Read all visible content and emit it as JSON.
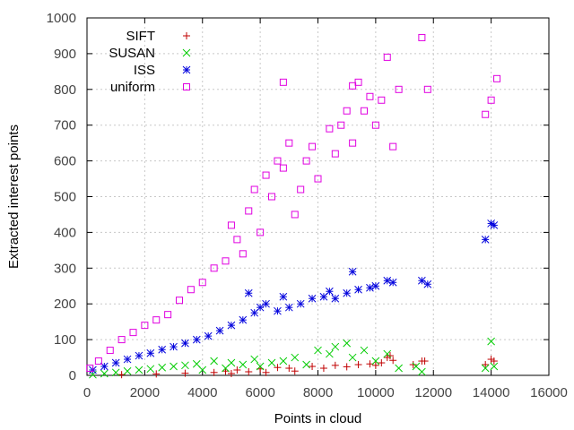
{
  "chart_data": {
    "type": "scatter",
    "title": "",
    "xlabel": "Points in cloud",
    "ylabel": "Extracted interest points",
    "xlim": [
      0,
      16000
    ],
    "ylim": [
      0,
      1000
    ],
    "xticks": [
      0,
      2000,
      4000,
      6000,
      8000,
      10000,
      12000,
      14000,
      16000
    ],
    "yticks": [
      0,
      100,
      200,
      300,
      400,
      500,
      600,
      700,
      800,
      900,
      1000
    ],
    "grid": true,
    "legend_position": "top-left",
    "series": [
      {
        "name": "SIFT",
        "marker": "plus",
        "color": "#c00000",
        "points": [
          [
            1200,
            2
          ],
          [
            2400,
            4
          ],
          [
            3400,
            6
          ],
          [
            4400,
            8
          ],
          [
            4800,
            12
          ],
          [
            5200,
            15
          ],
          [
            5600,
            10
          ],
          [
            6000,
            18
          ],
          [
            6600,
            22
          ],
          [
            7000,
            20
          ],
          [
            7200,
            12
          ],
          [
            7800,
            25
          ],
          [
            8200,
            20
          ],
          [
            8600,
            28
          ],
          [
            9000,
            24
          ],
          [
            9400,
            30
          ],
          [
            9800,
            32
          ],
          [
            10000,
            28
          ],
          [
            10200,
            35
          ],
          [
            10400,
            50
          ],
          [
            10500,
            55
          ],
          [
            10600,
            42
          ],
          [
            11300,
            30
          ],
          [
            11600,
            40
          ],
          [
            11700,
            40
          ],
          [
            13800,
            30
          ],
          [
            14000,
            45
          ],
          [
            14100,
            40
          ],
          [
            6200,
            8
          ],
          [
            5000,
            5
          ]
        ]
      },
      {
        "name": "SUSAN",
        "marker": "cross",
        "color": "#00cc00",
        "points": [
          [
            200,
            2
          ],
          [
            600,
            5
          ],
          [
            1000,
            8
          ],
          [
            1400,
            12
          ],
          [
            1800,
            15
          ],
          [
            2200,
            18
          ],
          [
            2600,
            22
          ],
          [
            3000,
            25
          ],
          [
            3400,
            28
          ],
          [
            3800,
            32
          ],
          [
            4000,
            15
          ],
          [
            4400,
            40
          ],
          [
            4800,
            20
          ],
          [
            5000,
            35
          ],
          [
            5400,
            30
          ],
          [
            5800,
            45
          ],
          [
            6000,
            25
          ],
          [
            6400,
            35
          ],
          [
            6800,
            40
          ],
          [
            7200,
            50
          ],
          [
            7600,
            30
          ],
          [
            8000,
            70
          ],
          [
            8400,
            60
          ],
          [
            8600,
            80
          ],
          [
            9000,
            90
          ],
          [
            9200,
            50
          ],
          [
            9600,
            70
          ],
          [
            10000,
            40
          ],
          [
            10400,
            60
          ],
          [
            10800,
            20
          ],
          [
            11400,
            25
          ],
          [
            11600,
            10
          ],
          [
            14000,
            95
          ],
          [
            14100,
            25
          ],
          [
            13800,
            20
          ]
        ]
      },
      {
        "name": "ISS",
        "marker": "star",
        "color": "#0000dd",
        "points": [
          [
            200,
            15
          ],
          [
            600,
            25
          ],
          [
            1000,
            35
          ],
          [
            1400,
            45
          ],
          [
            1800,
            55
          ],
          [
            2200,
            62
          ],
          [
            2600,
            72
          ],
          [
            3000,
            80
          ],
          [
            3400,
            90
          ],
          [
            3800,
            100
          ],
          [
            4200,
            110
          ],
          [
            4600,
            125
          ],
          [
            5000,
            140
          ],
          [
            5400,
            155
          ],
          [
            5800,
            175
          ],
          [
            6000,
            190
          ],
          [
            6200,
            200
          ],
          [
            6600,
            180
          ],
          [
            7000,
            190
          ],
          [
            7400,
            200
          ],
          [
            7800,
            215
          ],
          [
            8200,
            220
          ],
          [
            8600,
            215
          ],
          [
            9000,
            230
          ],
          [
            9200,
            290
          ],
          [
            9400,
            240
          ],
          [
            9800,
            245
          ],
          [
            10000,
            250
          ],
          [
            10400,
            265
          ],
          [
            10600,
            260
          ],
          [
            11600,
            265
          ],
          [
            11800,
            255
          ],
          [
            13800,
            380
          ],
          [
            14000,
            425
          ],
          [
            14100,
            420
          ],
          [
            5600,
            230
          ],
          [
            6800,
            220
          ],
          [
            8400,
            235
          ]
        ]
      },
      {
        "name": "uniform",
        "marker": "square",
        "color": "#e000e0",
        "points": [
          [
            100,
            20
          ],
          [
            400,
            40
          ],
          [
            800,
            70
          ],
          [
            1200,
            100
          ],
          [
            1600,
            120
          ],
          [
            2000,
            140
          ],
          [
            2400,
            155
          ],
          [
            2800,
            170
          ],
          [
            3200,
            210
          ],
          [
            3600,
            240
          ],
          [
            4000,
            260
          ],
          [
            4400,
            300
          ],
          [
            4800,
            320
          ],
          [
            5000,
            420
          ],
          [
            5200,
            380
          ],
          [
            5400,
            340
          ],
          [
            5600,
            460
          ],
          [
            5800,
            520
          ],
          [
            6000,
            400
          ],
          [
            6200,
            560
          ],
          [
            6400,
            500
          ],
          [
            6600,
            600
          ],
          [
            6800,
            580
          ],
          [
            7000,
            650
          ],
          [
            7200,
            450
          ],
          [
            7400,
            520
          ],
          [
            7600,
            600
          ],
          [
            7800,
            640
          ],
          [
            8000,
            550
          ],
          [
            8400,
            690
          ],
          [
            8600,
            620
          ],
          [
            8800,
            700
          ],
          [
            9000,
            740
          ],
          [
            9200,
            650
          ],
          [
            9400,
            820
          ],
          [
            9600,
            740
          ],
          [
            9800,
            780
          ],
          [
            10000,
            700
          ],
          [
            10200,
            770
          ],
          [
            10400,
            890
          ],
          [
            10600,
            640
          ],
          [
            10800,
            800
          ],
          [
            11600,
            945
          ],
          [
            11800,
            800
          ],
          [
            13800,
            730
          ],
          [
            14000,
            770
          ],
          [
            14200,
            830
          ],
          [
            6800,
            820
          ],
          [
            9200,
            810
          ]
        ]
      }
    ]
  }
}
